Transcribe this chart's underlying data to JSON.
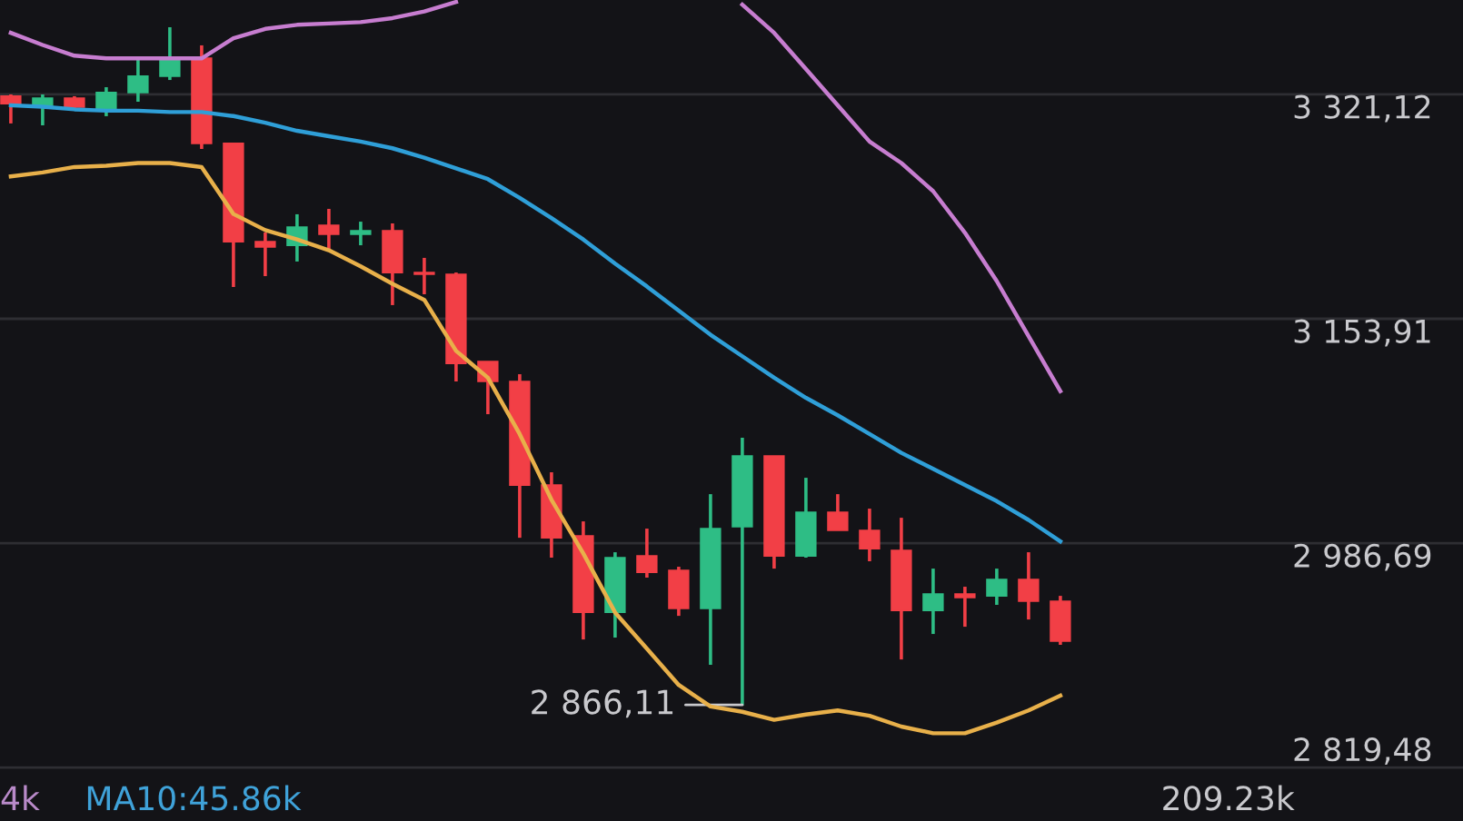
{
  "chart_data": {
    "type": "candlestick",
    "categories": [
      null,
      null,
      null,
      null,
      null,
      null,
      null,
      null,
      null,
      null,
      null,
      null,
      null,
      null,
      null,
      null,
      null,
      null,
      null,
      null,
      null,
      null,
      null,
      null,
      null,
      null,
      null,
      null,
      null,
      null,
      null,
      null,
      null,
      null,
      null,
      null,
      null,
      null,
      null,
      null,
      null,
      null,
      null,
      null,
      null,
      null
    ],
    "ohlc": [
      [
        3319.8,
        3321.1,
        3299.5,
        3314.3
      ],
      [
        3313.0,
        3321.1,
        3298.1,
        3318.4
      ],
      [
        3318.4,
        3319.8,
        3310.3,
        3311.6
      ],
      [
        3308.9,
        3326.5,
        3304.9,
        3322.5
      ],
      [
        3322.5,
        3348.2,
        3315.7,
        3334.7
      ],
      [
        3334.7,
        3371.2,
        3331.9,
        3348.2
      ],
      [
        3348.2,
        3357.7,
        3280.5,
        3284.6
      ],
      [
        3284.6,
        3284.6,
        3177.6,
        3211.4
      ],
      [
        3211.4,
        3218.2,
        3185.7,
        3207.4
      ],
      [
        3208.7,
        3231.8,
        3196.6,
        3222.3
      ],
      [
        3223.6,
        3235.8,
        3206.0,
        3216.9
      ],
      [
        3216.9,
        3226.3,
        3208.7,
        3219.6
      ],
      [
        3219.6,
        3225.0,
        3164.1,
        3188.4
      ],
      [
        3188.4,
        3199.3,
        3172.2,
        3187.1
      ],
      [
        3187.1,
        3188.4,
        3107.2,
        3120.7
      ],
      [
        3122.1,
        3122.1,
        3082.8,
        3107.2
      ],
      [
        3107.2,
        3112.6,
        2990.7,
        3030.0
      ],
      [
        3030.0,
        3039.5,
        2975.9,
        2990.7
      ],
      [
        2992.1,
        3002.9,
        2914.9,
        2935.2
      ],
      [
        2935.2,
        2979.9,
        2916.3,
        2975.9
      ],
      [
        2977.2,
        2997.5,
        2961.0,
        2965.0
      ],
      [
        2966.4,
        2969.1,
        2932.5,
        2938.0
      ],
      [
        2938.0,
        3023.2,
        2896.0,
        2997.5
      ],
      [
        2998.9,
        3065.2,
        2866.11,
        3051.7
      ],
      [
        3051.7,
        3051.7,
        2967.7,
        2977.2
      ],
      [
        2977.2,
        3035.4,
        2975.9,
        3009.7
      ],
      [
        3009.7,
        3023.2,
        2996.2,
        2996.2
      ],
      [
        2996.2,
        3012.4,
        2973.2,
        2982.6
      ],
      [
        2981.3,
        3005.6,
        2900.0,
        2936.6
      ],
      [
        2936.6,
        2967.7,
        2919.0,
        2948.8
      ],
      [
        2948.8,
        2954.2,
        2924.4,
        2946.1
      ],
      [
        2947.4,
        2967.7,
        2940.7,
        2959.6
      ],
      [
        2959.6,
        2979.9,
        2929.8,
        2943.4
      ],
      [
        2943.4,
        2947.4,
        2910.9,
        2913.6
      ],
      null,
      null,
      null,
      null,
      null,
      null,
      null,
      null,
      null,
      null,
      null,
      null
    ],
    "colors": [
      "#f23f46",
      "#2ebd85",
      "#f23f46",
      "#2ebd85",
      "#2ebd85",
      "#2ebd85",
      "#f23f46",
      "#f23f46",
      "#f23f46",
      "#2ebd85",
      "#f23f46",
      "#2ebd85",
      "#f23f46",
      "#f23f46",
      "#f23f46",
      "#f23f46",
      "#f23f46",
      "#f23f46",
      "#f23f46",
      "#2ebd85",
      "#f23f46",
      "#f23f46",
      "#2ebd85",
      "#2ebd85",
      "#f23f46",
      "#2ebd85",
      "#f23f46",
      "#f23f46",
      "#f23f46",
      "#2ebd85",
      "#f23f46",
      "#2ebd85",
      "#f23f46",
      "#f23f46",
      null,
      null,
      null,
      null,
      null,
      null,
      null,
      null,
      null,
      null,
      null,
      null
    ],
    "series": [
      {
        "type": "line",
        "color": "#e8b04a",
        "values": [
          3260,
          3263,
          3267,
          3268,
          3270,
          3270,
          3267,
          3232,
          3220,
          3213,
          3205,
          3193,
          3180,
          3168,
          3130,
          3110,
          3068,
          3019,
          2979,
          2935,
          2908,
          2881,
          2865,
          2861,
          2855,
          2859,
          2862,
          2858,
          2850,
          2845,
          2845,
          2853,
          2862,
          2873,
          null,
          null,
          null,
          null,
          null,
          null,
          null,
          null,
          null,
          null,
          null,
          null
        ]
      },
      {
        "type": "line",
        "color": "#2f9fd8",
        "values": [
          3313,
          3312,
          3310,
          3309,
          3309,
          3308,
          3308,
          3305,
          3300,
          3294,
          3290,
          3286,
          3281,
          3274,
          3266,
          3258,
          3244,
          3229,
          3213,
          3195,
          3178,
          3160,
          3142,
          3126,
          3110,
          3095,
          3082,
          3068,
          3054,
          3042,
          3030,
          3018,
          3004,
          2988,
          null,
          null,
          null,
          null,
          null,
          null,
          null,
          null,
          null,
          null,
          null,
          null
        ]
      },
      {
        "type": "line",
        "color": "#c77dd0",
        "values": [
          3367,
          3358,
          3350,
          3348,
          3348,
          3348,
          3348,
          3363,
          3370,
          3373,
          3374,
          3375,
          3378,
          3383,
          3390,
          null,
          null,
          null,
          null,
          null,
          null,
          null,
          null,
          3388,
          3367,
          3340,
          3313,
          3286,
          3270,
          3249,
          3218,
          3182,
          3141,
          3100,
          null,
          null,
          null,
          null,
          null,
          null,
          null,
          null,
          null,
          null,
          null,
          null
        ]
      }
    ],
    "ylim": [
      2779.6,
      3391.5
    ],
    "yticks": [
      {
        "value": 2819.48,
        "label": "2 819,48"
      },
      {
        "value": 2986.69,
        "label": "2 986,69"
      },
      {
        "value": 3153.91,
        "label": "3 153,91"
      },
      {
        "value": 3321.12,
        "label": "3 321,12"
      }
    ],
    "grid": "y",
    "tick_labels": "y",
    "annotations": [
      "2 866,11",
      "4k",
      "MA10:45.86k",
      "209.23k"
    ]
  }
}
